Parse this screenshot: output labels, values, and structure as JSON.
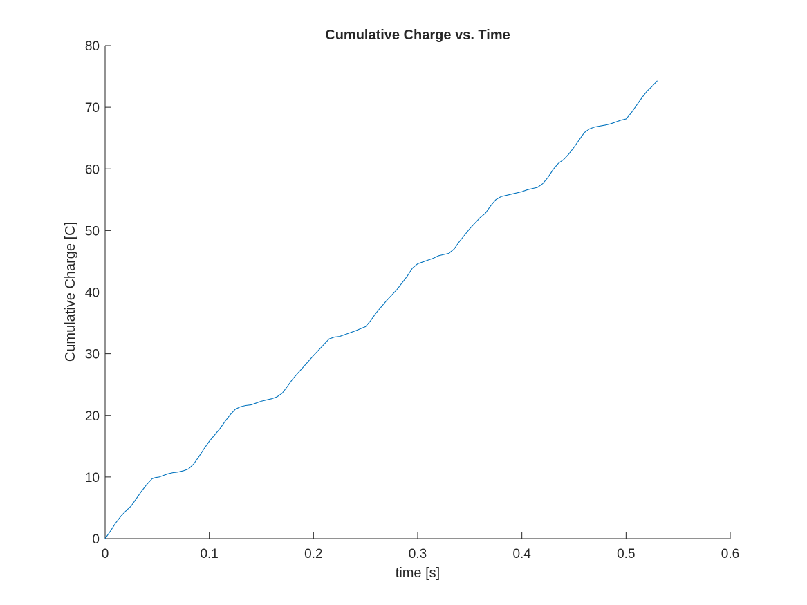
{
  "chart_data": {
    "type": "line",
    "title": "Cumulative Charge vs. Time",
    "xlabel": "time [s]",
    "ylabel": "Cumulative Charge [C]",
    "xlim": [
      0,
      0.6
    ],
    "ylim": [
      0,
      80
    ],
    "xticks": [
      0,
      0.1,
      0.2,
      0.3,
      0.4,
      0.5,
      0.6
    ],
    "xtick_labels": [
      "0",
      "0.1",
      "0.2",
      "0.3",
      "0.4",
      "0.5",
      "0.6"
    ],
    "yticks": [
      0,
      10,
      20,
      30,
      40,
      50,
      60,
      70,
      80
    ],
    "ytick_labels": [
      "0",
      "10",
      "20",
      "30",
      "40",
      "50",
      "60",
      "70",
      "80"
    ],
    "grid": false,
    "line_color": "#0072BD",
    "series": [
      {
        "x": [
          0,
          0.005,
          0.01,
          0.015,
          0.02,
          0.025,
          0.03,
          0.035,
          0.04,
          0.045,
          0.048,
          0.052,
          0.055,
          0.06,
          0.065,
          0.07,
          0.075,
          0.08,
          0.085,
          0.09,
          0.095,
          0.1,
          0.105,
          0.11,
          0.115,
          0.12,
          0.125,
          0.13,
          0.135,
          0.14,
          0.145,
          0.15,
          0.155,
          0.16,
          0.165,
          0.17,
          0.175,
          0.18,
          0.19,
          0.2,
          0.21,
          0.215,
          0.22,
          0.225,
          0.23,
          0.24,
          0.25,
          0.255,
          0.26,
          0.27,
          0.28,
          0.29,
          0.295,
          0.3,
          0.305,
          0.31,
          0.315,
          0.32,
          0.325,
          0.33,
          0.335,
          0.34,
          0.35,
          0.36,
          0.365,
          0.37,
          0.375,
          0.38,
          0.39,
          0.4,
          0.405,
          0.41,
          0.415,
          0.42,
          0.425,
          0.43,
          0.435,
          0.44,
          0.445,
          0.45,
          0.455,
          0.46,
          0.465,
          0.47,
          0.48,
          0.485,
          0.49,
          0.495,
          0.5,
          0.505,
          0.51,
          0.515,
          0.52,
          0.525,
          0.53
        ],
        "y": [
          0,
          1.2,
          2.5,
          3.6,
          4.5,
          5.3,
          6.5,
          7.7,
          8.8,
          9.7,
          9.9,
          10.0,
          10.2,
          10.5,
          10.7,
          10.8,
          11.0,
          11.3,
          12.1,
          13.3,
          14.6,
          15.8,
          16.8,
          17.8,
          19.0,
          20.1,
          21.0,
          21.4,
          21.6,
          21.7,
          22.0,
          22.3,
          22.5,
          22.7,
          23.0,
          23.6,
          24.7,
          25.9,
          27.8,
          29.7,
          31.5,
          32.4,
          32.7,
          32.8,
          33.1,
          33.7,
          34.4,
          35.4,
          36.6,
          38.6,
          40.4,
          42.6,
          43.9,
          44.6,
          44.9,
          45.2,
          45.5,
          45.9,
          46.1,
          46.3,
          47.0,
          48.2,
          50.3,
          52.1,
          52.8,
          54.0,
          55.0,
          55.5,
          55.9,
          56.3,
          56.6,
          56.8,
          57.0,
          57.6,
          58.6,
          59.9,
          60.9,
          61.5,
          62.4,
          63.5,
          64.7,
          65.9,
          66.5,
          66.8,
          67.1,
          67.3,
          67.6,
          67.9,
          68.1,
          69.1,
          70.3,
          71.5,
          72.6,
          73.4,
          74.3
        ]
      }
    ]
  }
}
